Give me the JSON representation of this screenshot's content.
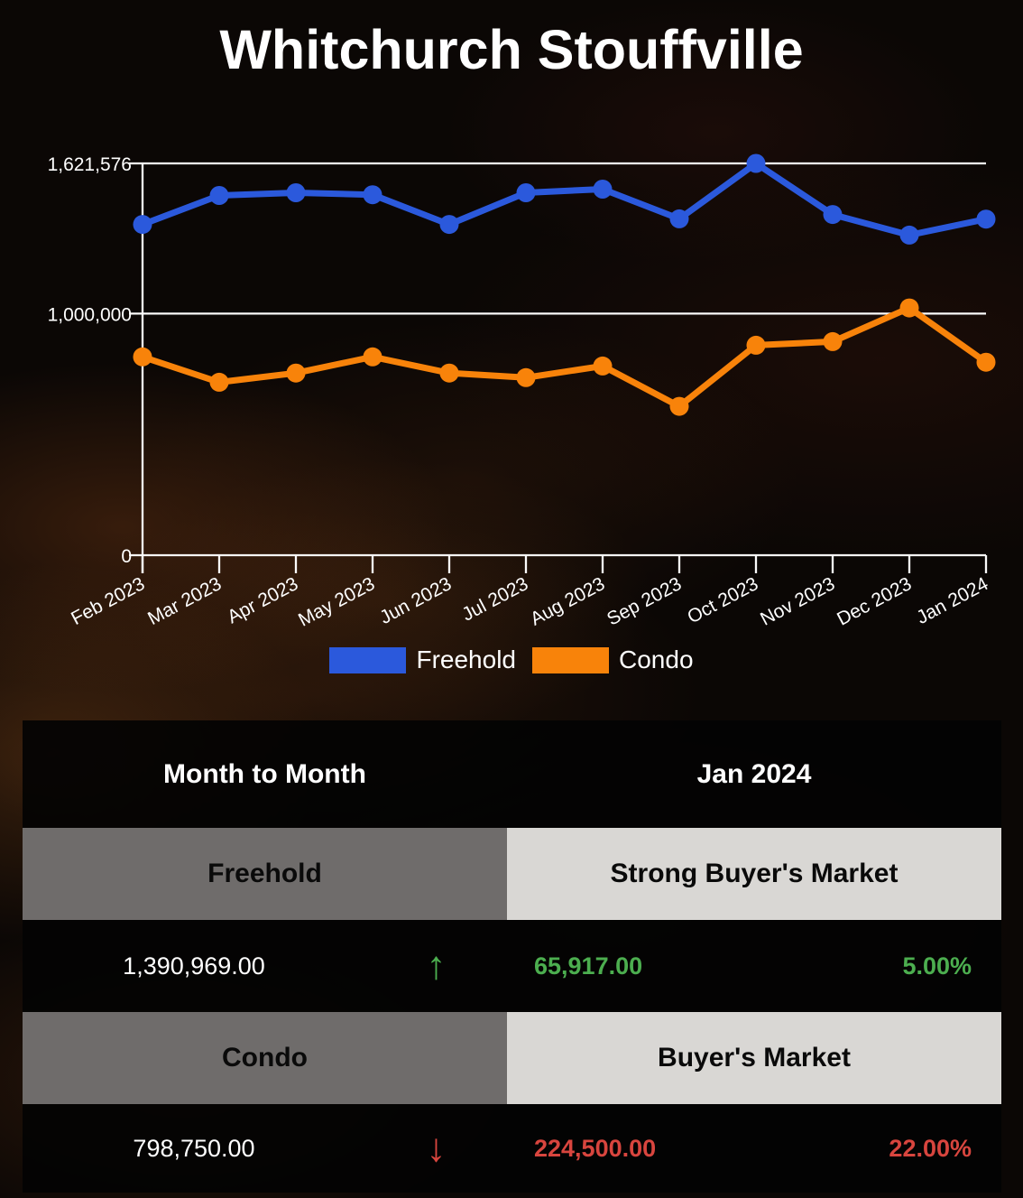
{
  "title": "Whitchurch Stouffville",
  "chart_data": {
    "type": "line",
    "x": [
      "Feb 2023",
      "Mar 2023",
      "Apr 2023",
      "May 2023",
      "Jun 2023",
      "Jul 2023",
      "Aug 2023",
      "Sep 2023",
      "Oct 2023",
      "Nov 2023",
      "Dec 2023",
      "Jan 2024"
    ],
    "series": [
      {
        "name": "Freehold",
        "color": "#2b59dc",
        "values": [
          1369000,
          1489000,
          1500000,
          1492000,
          1369000,
          1500000,
          1515000,
          1392000,
          1621576,
          1410000,
          1325052,
          1390969
        ]
      },
      {
        "name": "Condo",
        "color": "#f8830a",
        "values": [
          821000,
          716000,
          754000,
          821000,
          754000,
          735000,
          783000,
          616000,
          869000,
          884000,
          1023250,
          798750
        ]
      }
    ],
    "ylim": [
      0,
      1621576
    ],
    "yticks": [
      {
        "value": 0,
        "label": "0"
      },
      {
        "value": 1000000,
        "label": "1,000,000"
      },
      {
        "value": 1621576,
        "label": "1,621,576"
      }
    ],
    "grid": "horizontal-white-lines",
    "legend_position": "bottom",
    "title": "Whitchurch Stouffville"
  },
  "legend": {
    "items": [
      {
        "label": "Freehold"
      },
      {
        "label": "Condo"
      }
    ]
  },
  "table": {
    "header": {
      "left": "Month to Month",
      "right": "Jan 2024"
    },
    "rows": [
      {
        "name": "Freehold",
        "market": "Strong Buyer's Market",
        "price": "1,390,969.00",
        "direction": "up",
        "change": "65,917.00",
        "percent": "5.00%"
      },
      {
        "name": "Condo",
        "market": "Buyer's Market",
        "price": "798,750.00",
        "direction": "down",
        "change": "224,500.00",
        "percent": "22.00%"
      }
    ]
  },
  "icons": {
    "up_arrow": "↑",
    "down_arrow": "↓"
  },
  "colors": {
    "freehold_blue": "#2b59dc",
    "condo_orange": "#f8830a",
    "positive_green": "#4cae4f",
    "negative_red": "#d8453e",
    "row_label_gray": "#6f6c6b",
    "market_label_gray": "#d9d7d4"
  }
}
